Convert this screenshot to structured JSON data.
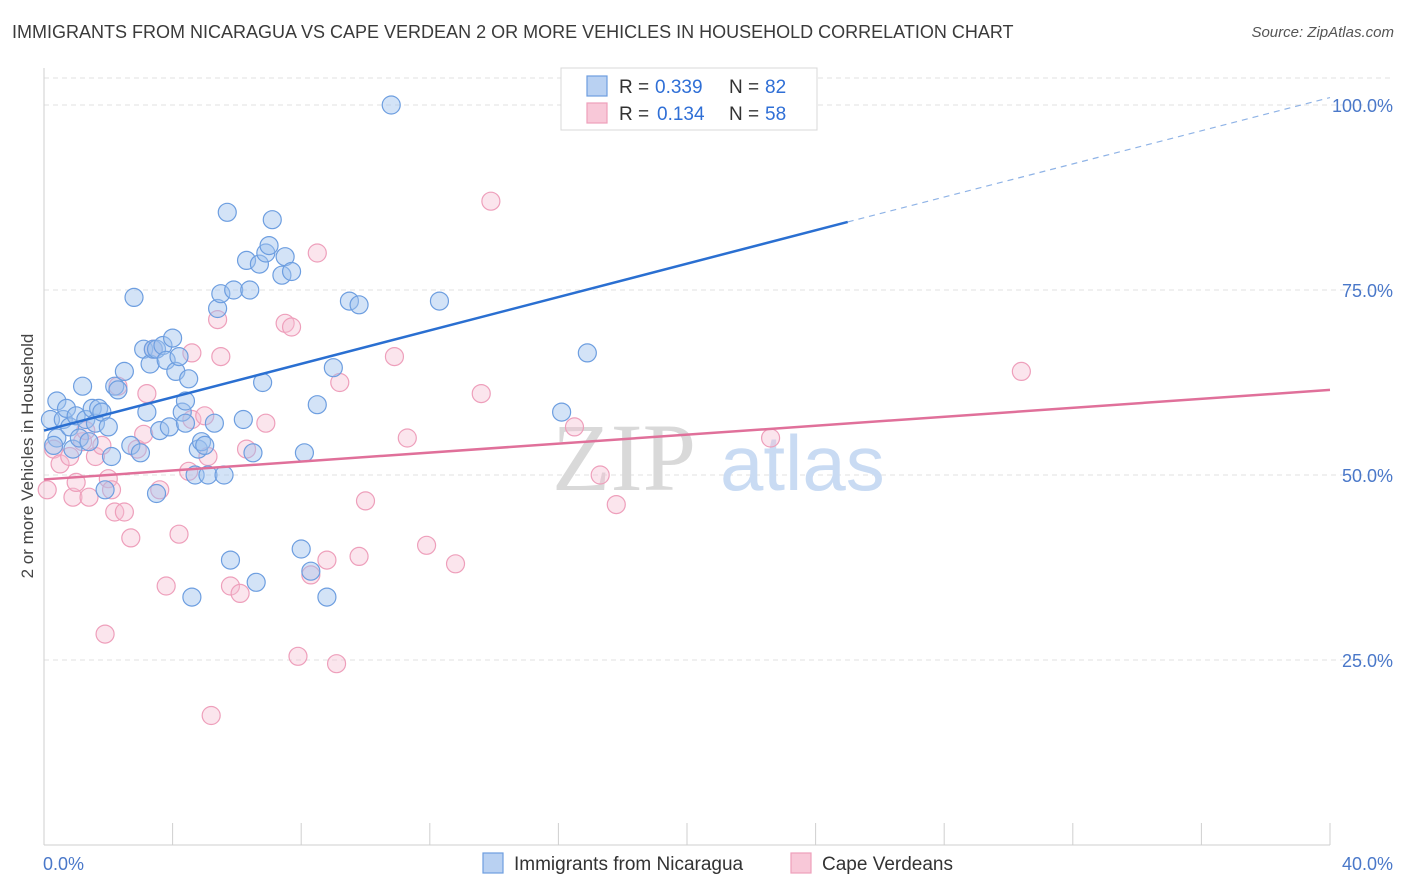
{
  "title": "IMMIGRANTS FROM NICARAGUA VS CAPE VERDEAN 2 OR MORE VEHICLES IN HOUSEHOLD CORRELATION CHART",
  "source": "Source: ZipAtlas.com",
  "watermark": {
    "zip": "ZIP",
    "atlas": "atlas"
  },
  "legend": {
    "r_label": "R =",
    "n_label": "N =",
    "items": [
      {
        "r": "0.339",
        "n": "82"
      },
      {
        "r": "0.134",
        "n": "58"
      }
    ]
  },
  "chart_data": {
    "type": "scatter",
    "title": "IMMIGRANTS FROM NICARAGUA VS CAPE VERDEAN 2 OR MORE VEHICLES IN HOUSEHOLD CORRELATION CHART",
    "xlabel": "",
    "ylabel": "2 or more Vehicles in Household",
    "xlim": [
      0,
      40
    ],
    "ylim": [
      0,
      105
    ],
    "x_tick_labels": [
      "0.0%",
      "40.0%"
    ],
    "y_ticks": [
      25,
      50,
      75,
      100
    ],
    "y_tick_labels": [
      "25.0%",
      "50.0%",
      "75.0%",
      "100.0%"
    ],
    "grid": true,
    "legend_position": "top-center",
    "colors": {
      "blue": "#6d9ee0",
      "pink": "#ee9fbb",
      "blue_line": "#2a6fd1",
      "pink_line": "#e0709a"
    },
    "series": [
      {
        "name": "Immigrants from Nicaragua",
        "color": "#6d9ee0",
        "r": 0.339,
        "n": 82,
        "trend": {
          "x0": 0,
          "y0": 56.0,
          "x1": 25,
          "y1": 84.2,
          "dash_x1": 40,
          "dash_y1": 101.0
        },
        "points": [
          [
            0.2,
            57.5
          ],
          [
            0.4,
            55.0
          ],
          [
            0.4,
            60.0
          ],
          [
            0.6,
            57.5
          ],
          [
            0.7,
            59.0
          ],
          [
            0.8,
            56.5
          ],
          [
            0.9,
            53.5
          ],
          [
            1.0,
            58.0
          ],
          [
            1.1,
            55.0
          ],
          [
            1.2,
            62.0
          ],
          [
            1.3,
            57.5
          ],
          [
            1.4,
            54.5
          ],
          [
            1.5,
            59.0
          ],
          [
            1.6,
            57.0
          ],
          [
            1.7,
            59.0
          ],
          [
            1.8,
            58.5
          ],
          [
            1.9,
            48.0
          ],
          [
            2.0,
            56.5
          ],
          [
            2.1,
            52.5
          ],
          [
            2.2,
            62.0
          ],
          [
            2.3,
            61.5
          ],
          [
            2.8,
            74.0
          ],
          [
            2.7,
            54.0
          ],
          [
            3.0,
            53.0
          ],
          [
            3.1,
            67.0
          ],
          [
            3.2,
            58.5
          ],
          [
            3.3,
            65.0
          ],
          [
            3.4,
            67.0
          ],
          [
            3.5,
            67.0
          ],
          [
            3.5,
            47.5
          ],
          [
            3.6,
            56.0
          ],
          [
            3.7,
            67.5
          ],
          [
            3.8,
            65.5
          ],
          [
            3.9,
            56.5
          ],
          [
            4.0,
            68.5
          ],
          [
            4.1,
            64.0
          ],
          [
            4.2,
            66.0
          ],
          [
            4.3,
            58.5
          ],
          [
            4.4,
            57.0
          ],
          [
            4.5,
            63.0
          ],
          [
            4.6,
            33.5
          ],
          [
            4.7,
            50.0
          ],
          [
            4.8,
            53.5
          ],
          [
            4.9,
            54.5
          ],
          [
            5.0,
            54.0
          ],
          [
            5.1,
            50.0
          ],
          [
            5.3,
            57.0
          ],
          [
            5.4,
            72.5
          ],
          [
            5.5,
            74.5
          ],
          [
            5.6,
            50.0
          ],
          [
            5.7,
            85.5
          ],
          [
            5.8,
            38.5
          ],
          [
            5.9,
            75.0
          ],
          [
            6.2,
            57.5
          ],
          [
            6.3,
            79.0
          ],
          [
            6.4,
            75.0
          ],
          [
            6.5,
            53.0
          ],
          [
            6.6,
            35.5
          ],
          [
            6.7,
            78.5
          ],
          [
            6.8,
            62.5
          ],
          [
            6.9,
            80.0
          ],
          [
            7.0,
            81.0
          ],
          [
            7.1,
            84.5
          ],
          [
            7.4,
            77.0
          ],
          [
            7.5,
            79.5
          ],
          [
            7.7,
            77.5
          ],
          [
            8.0,
            40.0
          ],
          [
            8.1,
            53.0
          ],
          [
            8.3,
            37.0
          ],
          [
            8.5,
            59.5
          ],
          [
            8.8,
            33.5
          ],
          [
            9.0,
            64.5
          ],
          [
            9.5,
            73.5
          ],
          [
            9.8,
            73.0
          ],
          [
            10.8,
            100.0
          ],
          [
            12.3,
            73.5
          ],
          [
            16.1,
            58.5
          ],
          [
            16.9,
            66.5
          ],
          [
            20.9,
            100.0
          ],
          [
            0.3,
            54.0
          ],
          [
            2.5,
            64.0
          ],
          [
            4.4,
            60.0
          ]
        ]
      },
      {
        "name": "Cape Verdeans",
        "color": "#ee9fbb",
        "r": 0.134,
        "n": 58,
        "trend": {
          "x0": 0,
          "y0": 49.4,
          "x1": 40,
          "y1": 61.5
        },
        "points": [
          [
            0.1,
            48.0
          ],
          [
            0.3,
            53.5
          ],
          [
            0.5,
            51.5
          ],
          [
            0.8,
            52.5
          ],
          [
            0.9,
            47.0
          ],
          [
            1.0,
            49.0
          ],
          [
            1.2,
            54.5
          ],
          [
            1.4,
            47.0
          ],
          [
            1.6,
            52.5
          ],
          [
            1.8,
            54.0
          ],
          [
            1.9,
            28.5
          ],
          [
            2.0,
            49.5
          ],
          [
            2.1,
            48.0
          ],
          [
            2.2,
            45.0
          ],
          [
            2.3,
            62.0
          ],
          [
            2.5,
            45.0
          ],
          [
            2.7,
            41.5
          ],
          [
            2.9,
            53.5
          ],
          [
            3.1,
            55.5
          ],
          [
            3.2,
            61.0
          ],
          [
            3.4,
            67.0
          ],
          [
            3.6,
            48.0
          ],
          [
            3.8,
            35.0
          ],
          [
            4.2,
            42.0
          ],
          [
            4.5,
            50.5
          ],
          [
            4.6,
            57.5
          ],
          [
            5.0,
            58.0
          ],
          [
            5.1,
            52.5
          ],
          [
            5.2,
            17.5
          ],
          [
            5.4,
            71.0
          ],
          [
            5.5,
            66.0
          ],
          [
            5.8,
            35.0
          ],
          [
            6.1,
            34.0
          ],
          [
            6.3,
            53.5
          ],
          [
            6.9,
            57.0
          ],
          [
            7.5,
            70.5
          ],
          [
            7.7,
            70.0
          ],
          [
            7.9,
            25.5
          ],
          [
            8.3,
            36.5
          ],
          [
            8.5,
            80.0
          ],
          [
            8.8,
            38.5
          ],
          [
            9.1,
            24.5
          ],
          [
            9.2,
            62.5
          ],
          [
            9.8,
            39.0
          ],
          [
            10.0,
            46.5
          ],
          [
            10.9,
            66.0
          ],
          [
            11.3,
            55.0
          ],
          [
            11.9,
            40.5
          ],
          [
            12.8,
            38.0
          ],
          [
            13.6,
            61.0
          ],
          [
            13.9,
            87.0
          ],
          [
            16.5,
            56.5
          ],
          [
            17.3,
            50.0
          ],
          [
            17.8,
            46.0
          ],
          [
            22.6,
            55.0
          ],
          [
            30.4,
            64.0
          ],
          [
            4.6,
            66.5
          ],
          [
            1.3,
            56.0
          ]
        ]
      }
    ]
  },
  "bottom_legend": [
    {
      "label": "Immigrants from Nicaragua"
    },
    {
      "label": "Cape Verdeans"
    }
  ]
}
